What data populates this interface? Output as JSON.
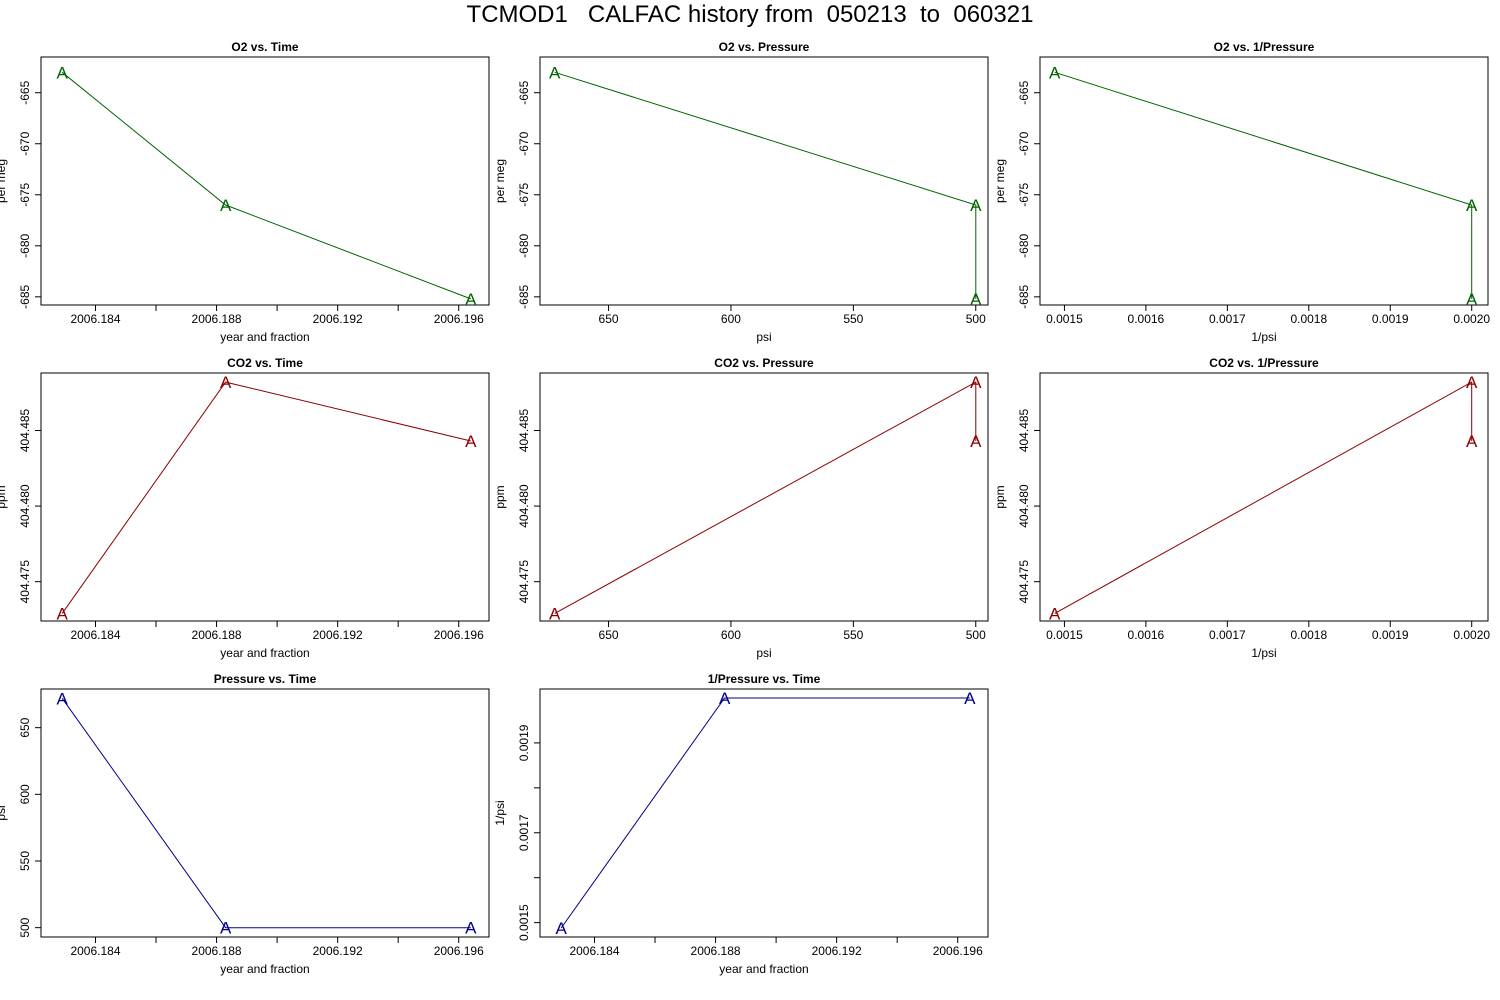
{
  "title": "TCMOD1   CALFAC history from  050213  to  060321",
  "colors": {
    "o2": "#006400",
    "co2": "#8b0000",
    "pressure": "#00008b"
  },
  "marker_symbol": "A",
  "chart_data": [
    {
      "type": "line",
      "title": "O2 vs. Time",
      "xlabel": "year and fraction",
      "ylabel": "per meg",
      "color_key": "o2",
      "reverse_x": false,
      "xlim": [
        2006.1822,
        2006.197
      ],
      "ylim": [
        -685.8,
        -661.5
      ],
      "x": [
        2006.1829,
        2006.1883,
        2006.1964
      ],
      "y": [
        -663.0,
        -676.0,
        -685.2
      ],
      "xticks": [
        2006.184,
        2006.186,
        2006.188,
        2006.19,
        2006.192,
        2006.194,
        2006.196
      ],
      "xtick_labels": [
        "2006.184",
        "",
        "2006.188",
        "",
        "2006.192",
        "",
        "2006.196"
      ],
      "yticks": [
        -665,
        -670,
        -675,
        -680,
        -685
      ],
      "ytick_labels": [
        "-665",
        "-670",
        "-675",
        "-680",
        "-685"
      ]
    },
    {
      "type": "line",
      "title": "O2 vs. Pressure",
      "xlabel": "psi",
      "ylabel": "per meg",
      "color_key": "o2",
      "reverse_x": true,
      "xlim": [
        495,
        678
      ],
      "ylim": [
        -685.8,
        -661.5
      ],
      "x": [
        672,
        500,
        500
      ],
      "y": [
        -663.0,
        -676.0,
        -685.2
      ],
      "xticks": [
        650,
        600,
        550,
        500
      ],
      "xtick_labels": [
        "650",
        "600",
        "550",
        "500"
      ],
      "yticks": [
        -665,
        -670,
        -675,
        -680,
        -685
      ],
      "ytick_labels": [
        "-665",
        "-670",
        "-675",
        "-680",
        "-685"
      ]
    },
    {
      "type": "line",
      "title": "O2 vs. 1/Pressure",
      "xlabel": "1/psi",
      "ylabel": "per meg",
      "color_key": "o2",
      "reverse_x": false,
      "xlim": [
        0.00147,
        0.00202
      ],
      "ylim": [
        -685.8,
        -661.5
      ],
      "x": [
        0.001488,
        0.002,
        0.002
      ],
      "y": [
        -663.0,
        -676.0,
        -685.2
      ],
      "xticks": [
        0.0015,
        0.0016,
        0.0017,
        0.0018,
        0.0019,
        0.002
      ],
      "xtick_labels": [
        "0.0015",
        "0.0016",
        "0.0017",
        "0.0018",
        "0.0019",
        "0.0020"
      ],
      "yticks": [
        -665,
        -670,
        -675,
        -680,
        -685
      ],
      "ytick_labels": [
        "-665",
        "-670",
        "-675",
        "-680",
        "-685"
      ]
    },
    {
      "type": "line",
      "title": "CO2 vs. Time",
      "xlabel": "year and fraction",
      "ylabel": "ppm",
      "color_key": "co2",
      "reverse_x": false,
      "xlim": [
        2006.1822,
        2006.197
      ],
      "ylim": [
        404.4724,
        404.4888
      ],
      "x": [
        2006.1829,
        2006.1883,
        2006.1964
      ],
      "y": [
        404.4729,
        404.4882,
        404.4843
      ],
      "xticks": [
        2006.184,
        2006.186,
        2006.188,
        2006.19,
        2006.192,
        2006.194,
        2006.196
      ],
      "xtick_labels": [
        "2006.184",
        "",
        "2006.188",
        "",
        "2006.192",
        "",
        "2006.196"
      ],
      "yticks": [
        404.475,
        404.48,
        404.485
      ],
      "ytick_labels": [
        "404.475",
        "404.480",
        "404.485"
      ]
    },
    {
      "type": "line",
      "title": "CO2 vs. Pressure",
      "xlabel": "psi",
      "ylabel": "ppm",
      "color_key": "co2",
      "reverse_x": true,
      "xlim": [
        495,
        678
      ],
      "ylim": [
        404.4724,
        404.4888
      ],
      "x": [
        672,
        500,
        500
      ],
      "y": [
        404.4729,
        404.4882,
        404.4843
      ],
      "xticks": [
        650,
        600,
        550,
        500
      ],
      "xtick_labels": [
        "650",
        "600",
        "550",
        "500"
      ],
      "yticks": [
        404.475,
        404.48,
        404.485
      ],
      "ytick_labels": [
        "404.475",
        "404.480",
        "404.485"
      ]
    },
    {
      "type": "line",
      "title": "CO2 vs. 1/Pressure",
      "xlabel": "1/psi",
      "ylabel": "ppm",
      "color_key": "co2",
      "reverse_x": false,
      "xlim": [
        0.00147,
        0.00202
      ],
      "ylim": [
        404.4724,
        404.4888
      ],
      "x": [
        0.001488,
        0.002,
        0.002
      ],
      "y": [
        404.4729,
        404.4882,
        404.4843
      ],
      "xticks": [
        0.0015,
        0.0016,
        0.0017,
        0.0018,
        0.0019,
        0.002
      ],
      "xtick_labels": [
        "0.0015",
        "0.0016",
        "0.0017",
        "0.0018",
        "0.0019",
        "0.0020"
      ],
      "yticks": [
        404.475,
        404.48,
        404.485
      ],
      "ytick_labels": [
        "404.475",
        "404.480",
        "404.485"
      ]
    },
    {
      "type": "line",
      "title": "Pressure vs. Time",
      "xlabel": "year and fraction",
      "ylabel": "psi",
      "color_key": "pressure",
      "reverse_x": false,
      "xlim": [
        2006.1822,
        2006.197
      ],
      "ylim": [
        493,
        679
      ],
      "x": [
        2006.1829,
        2006.1883,
        2006.1964
      ],
      "y": [
        672,
        500,
        500
      ],
      "xticks": [
        2006.184,
        2006.186,
        2006.188,
        2006.19,
        2006.192,
        2006.194,
        2006.196
      ],
      "xtick_labels": [
        "2006.184",
        "",
        "2006.188",
        "",
        "2006.192",
        "",
        "2006.196"
      ],
      "yticks": [
        500,
        550,
        600,
        650
      ],
      "ytick_labels": [
        "500",
        "550",
        "600",
        "650"
      ]
    },
    {
      "type": "line",
      "title": "1/Pressure vs. Time",
      "xlabel": "year and fraction",
      "ylabel": "1/psi",
      "color_key": "pressure",
      "reverse_x": false,
      "xlim": [
        2006.1822,
        2006.197
      ],
      "ylim": [
        0.001468,
        0.00202
      ],
      "x": [
        2006.1829,
        2006.1883,
        2006.1964
      ],
      "y": [
        0.001488,
        0.002,
        0.002
      ],
      "xticks": [
        2006.184,
        2006.186,
        2006.188,
        2006.19,
        2006.192,
        2006.194,
        2006.196
      ],
      "xtick_labels": [
        "2006.184",
        "",
        "2006.188",
        "",
        "2006.192",
        "",
        "2006.196"
      ],
      "yticks": [
        0.0015,
        0.0016,
        0.0017,
        0.0018,
        0.0019
      ],
      "ytick_labels": [
        "0.0015",
        "",
        "0.0017",
        "",
        "0.0019"
      ]
    }
  ]
}
